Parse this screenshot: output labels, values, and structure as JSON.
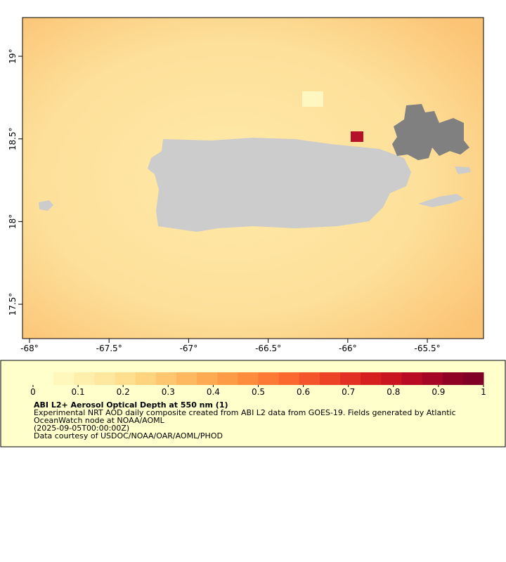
{
  "map": {
    "xlim": [
      -68.044,
      -65.147
    ],
    "ylim": [
      17.292,
      19.234
    ],
    "xticks": [
      {
        "value": -68,
        "label": "-68°"
      },
      {
        "value": -67.5,
        "label": "-67.5°"
      },
      {
        "value": -67,
        "label": "-67°"
      },
      {
        "value": -66.5,
        "label": "-66.5°"
      },
      {
        "value": -66,
        "label": "-66°"
      },
      {
        "value": -65.5,
        "label": "-65.5°"
      }
    ],
    "yticks": [
      {
        "value": 17.5,
        "label": "17.5°"
      },
      {
        "value": 18,
        "label": "18°"
      },
      {
        "value": 18.5,
        "label": "18.5°"
      },
      {
        "value": 19,
        "label": "19°"
      }
    ]
  },
  "colorbar": {
    "lim": [
      0,
      1
    ],
    "ticks": [
      0,
      0.1,
      0.2,
      0.3,
      0.4,
      0.5,
      0.6,
      0.7,
      0.8,
      0.9,
      1
    ],
    "colors": [
      "#ffffcc",
      "#fff7bc",
      "#ffefad",
      "#fee79e",
      "#fedf8f",
      "#fed47f",
      "#fec66e",
      "#feb85f",
      "#feaa52",
      "#fd9c47",
      "#fd8c3c",
      "#fc7a36",
      "#fb6830",
      "#f4552b",
      "#ec4226",
      "#e23022",
      "#d6201f",
      "#c8151f",
      "#b90c24",
      "#a60626",
      "#8f0226",
      "#800026"
    ]
  },
  "legend": {
    "title": "ABI L2+ Aerosol Optical Depth at 550 nm (1)",
    "lines": [
      "Experimental NRT AOD daily composite created from ABI L2 data from GOES-19. Fields generated by Atlantic",
      "OceanWatch node at NOAA/AOML",
      "(2025-09-05T00:00:00Z)",
      "Data courtesy of USDOC/NOAA/OAR/AOML/PHOD"
    ]
  }
}
